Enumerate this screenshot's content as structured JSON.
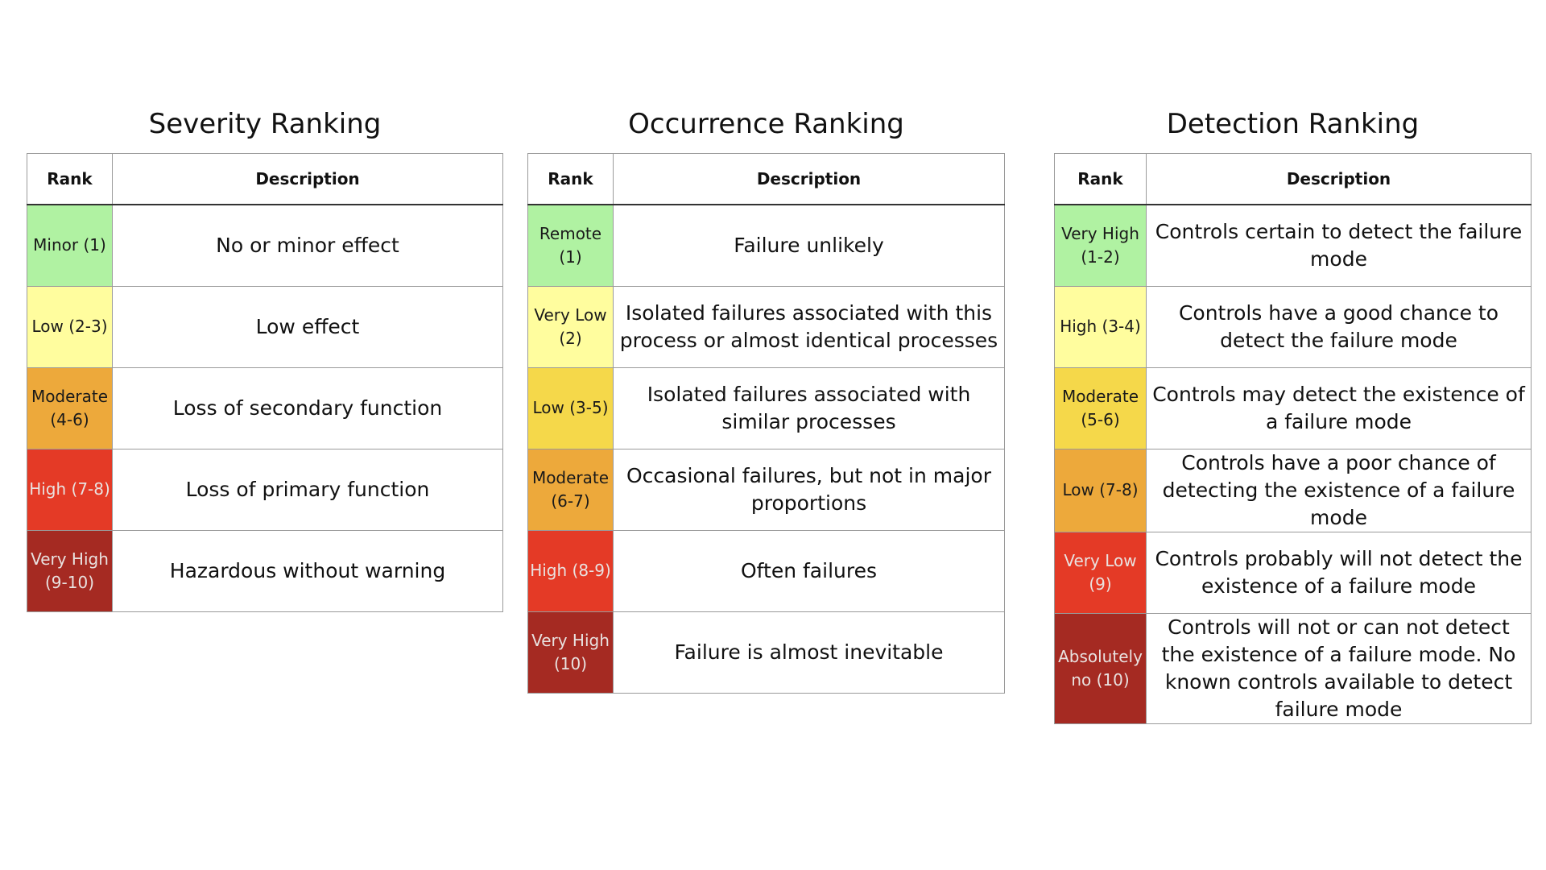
{
  "colors": {
    "minor_green": "#b0f2a2",
    "low_yellow": "#fffd9e",
    "mid_yellow": "#f5d84a",
    "moderate_orange": "#eda93b",
    "high_red": "#e43a26",
    "very_high_dark_red": "#a52a22"
  },
  "severity": {
    "title": "Severity Ranking",
    "col_rank": "Rank",
    "col_desc": "Description",
    "rows": [
      {
        "rank": "Minor (1)",
        "desc": "No or minor effect",
        "color": "#b0f2a2"
      },
      {
        "rank": "Low (2-3)",
        "desc": "Low effect",
        "color": "#fffd9e"
      },
      {
        "rank": "Moderate (4-6)",
        "desc": "Loss of secondary function",
        "color": "#eda93b"
      },
      {
        "rank": "High (7-8)",
        "desc": "Loss of primary function",
        "color": "#e43a26"
      },
      {
        "rank": "Very High (9-10)",
        "desc": "Hazardous without warning",
        "color": "#a52a22"
      }
    ]
  },
  "occurrence": {
    "title": "Occurrence Ranking",
    "col_rank": "Rank",
    "col_desc": "Description",
    "rows": [
      {
        "rank": "Remote (1)",
        "desc": "Failure unlikely",
        "color": "#b0f2a2"
      },
      {
        "rank": "Very Low (2)",
        "desc": "Isolated failures associated with this process or almost identical processes",
        "color": "#fffd9e"
      },
      {
        "rank": "Low (3-5)",
        "desc": "Isolated failures associated with similar processes",
        "color": "#f5d84a"
      },
      {
        "rank": "Moderate (6-7)",
        "desc": "Occasional failures, but not in major proportions",
        "color": "#eda93b"
      },
      {
        "rank": "High (8-9)",
        "desc": "Often failures",
        "color": "#e43a26"
      },
      {
        "rank": "Very High (10)",
        "desc": "Failure is almost inevitable",
        "color": "#a52a22"
      }
    ]
  },
  "detection": {
    "title": "Detection Ranking",
    "col_rank": "Rank",
    "col_desc": "Description",
    "rows": [
      {
        "rank": "Very High (1-2)",
        "desc": "Controls certain to detect the failure mode",
        "color": "#b0f2a2"
      },
      {
        "rank": "High (3-4)",
        "desc": "Controls have a good chance to detect the failure mode",
        "color": "#fffd9e"
      },
      {
        "rank": "Moderate (5-6)",
        "desc": "Controls may detect the existence of a failure mode",
        "color": "#f5d84a"
      },
      {
        "rank": "Low (7-8)",
        "desc": "Controls have a poor chance of detecting the existence of a failure mode",
        "color": "#eda93b"
      },
      {
        "rank": "Very Low (9)",
        "desc": "Controls probably will not detect  the existence of a failure mode",
        "color": "#e43a26"
      },
      {
        "rank": "Absolutely no (10)",
        "desc": "Controls will not or can not  detect  the existence of a failure mode. No known controls available to detect failure mode",
        "color": "#a52a22"
      }
    ]
  }
}
